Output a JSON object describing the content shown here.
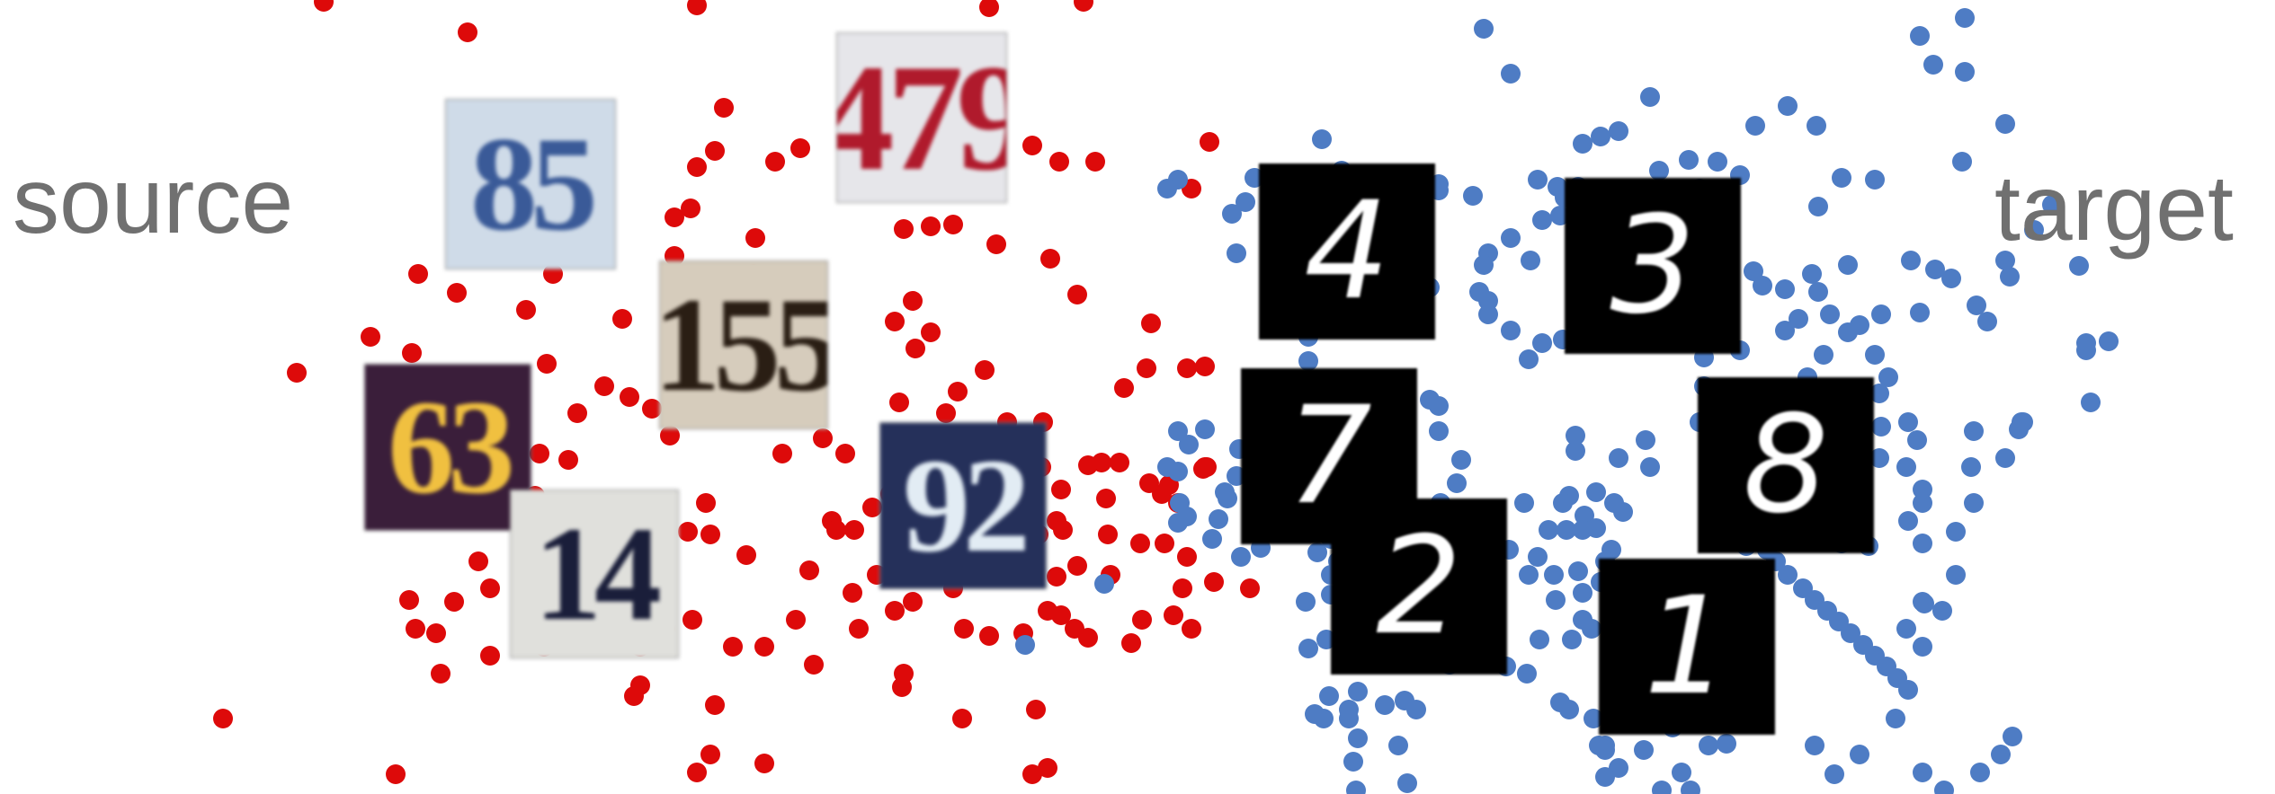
{
  "labels": {
    "source": "source",
    "target": "target"
  },
  "colors": {
    "source_points": "#dd0a0a",
    "target_points": "#4e7cc4",
    "label_text": "#707070"
  },
  "source_digits": [
    {
      "text": "85",
      "bg": "#cfdbe8",
      "fg": "#3a5a98"
    },
    {
      "text": "479",
      "bg": "#e6e6ea",
      "fg": "#b01a2c"
    },
    {
      "text": "155",
      "bg": "#d6ccbc",
      "fg": "#2a1e14"
    },
    {
      "text": "63",
      "bg": "#3a1e3a",
      "fg": "#f0c040"
    },
    {
      "text": "14",
      "bg": "#e0e0dc",
      "fg": "#1a1e3a"
    },
    {
      "text": "92",
      "bg": "#25305a",
      "fg": "#e2ecf4"
    }
  ],
  "target_digits": [
    {
      "text": "4"
    },
    {
      "text": "3"
    },
    {
      "text": "7"
    },
    {
      "text": "8"
    },
    {
      "text": "2"
    },
    {
      "text": "1"
    }
  ]
}
